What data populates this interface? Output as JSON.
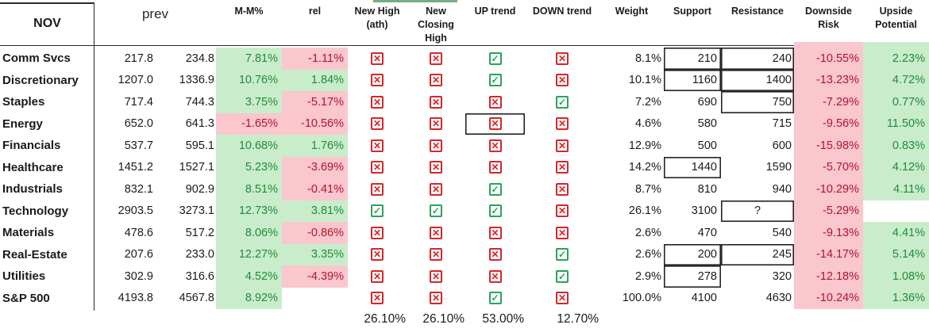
{
  "title": {
    "month": "NOV"
  },
  "columns": {
    "prev": "prev",
    "mm": "M-M%",
    "rel": "rel",
    "new_high": "New High\n(ath)",
    "new_closing_high": "New\nClosing\nHigh",
    "up_trend": "UP trend",
    "down_trend": "DOWN trend",
    "weight": "Weight",
    "support": "Support",
    "resistance": "Resistance",
    "downside": "Downside\nRisk",
    "upside": "Upside\nPotential"
  },
  "rows": [
    {
      "name": "Comm Svcs",
      "prev": "217.8",
      "close": "234.8",
      "mm": "7.81%",
      "rel": "-1.11%",
      "flags": {
        "new_high": false,
        "new_closing_high": false,
        "up_trend": true,
        "down_trend": false
      },
      "weight": "8.1%",
      "support": "210",
      "resistance": "240",
      "downside": "-10.55%",
      "upside": "2.23%",
      "boxed": [
        "support",
        "resistance"
      ]
    },
    {
      "name": "Discretionary",
      "prev": "1207.0",
      "close": "1336.9",
      "mm": "10.76%",
      "rel": "1.84%",
      "flags": {
        "new_high": false,
        "new_closing_high": false,
        "up_trend": true,
        "down_trend": false
      },
      "weight": "10.1%",
      "support": "1160",
      "resistance": "1400",
      "downside": "-13.23%",
      "upside": "4.72%",
      "boxed": [
        "support",
        "resistance"
      ]
    },
    {
      "name": "Staples",
      "prev": "717.4",
      "close": "744.3",
      "mm": "3.75%",
      "rel": "-5.17%",
      "flags": {
        "new_high": false,
        "new_closing_high": false,
        "up_trend": false,
        "down_trend": true
      },
      "weight": "7.2%",
      "support": "690",
      "resistance": "750",
      "downside": "-7.29%",
      "upside": "0.77%",
      "boxed": [
        "resistance"
      ]
    },
    {
      "name": "Energy",
      "prev": "652.0",
      "close": "641.3",
      "mm": "-1.65%",
      "rel": "-10.56%",
      "flags": {
        "new_high": false,
        "new_closing_high": false,
        "up_trend": false,
        "down_trend": false
      },
      "weight": "4.6%",
      "support": "580",
      "resistance": "715",
      "downside": "-9.56%",
      "upside": "11.50%",
      "boxed": [
        "up_trend"
      ]
    },
    {
      "name": "Financials",
      "prev": "537.7",
      "close": "595.1",
      "mm": "10.68%",
      "rel": "1.76%",
      "flags": {
        "new_high": false,
        "new_closing_high": false,
        "up_trend": false,
        "down_trend": false
      },
      "weight": "12.9%",
      "support": "500",
      "resistance": "600",
      "downside": "-15.98%",
      "upside": "0.83%",
      "boxed": []
    },
    {
      "name": "Healthcare",
      "prev": "1451.2",
      "close": "1527.1",
      "mm": "5.23%",
      "rel": "-3.69%",
      "flags": {
        "new_high": false,
        "new_closing_high": false,
        "up_trend": false,
        "down_trend": false
      },
      "weight": "14.2%",
      "support": "1440",
      "resistance": "1590",
      "downside": "-5.70%",
      "upside": "4.12%",
      "boxed": [
        "support"
      ]
    },
    {
      "name": "Industrials",
      "prev": "832.1",
      "close": "902.9",
      "mm": "8.51%",
      "rel": "-0.41%",
      "flags": {
        "new_high": false,
        "new_closing_high": false,
        "up_trend": true,
        "down_trend": false
      },
      "weight": "8.7%",
      "support": "810",
      "resistance": "940",
      "downside": "-10.29%",
      "upside": "4.11%",
      "boxed": []
    },
    {
      "name": "Technology",
      "prev": "2903.5",
      "close": "3273.1",
      "mm": "12.73%",
      "rel": "3.81%",
      "flags": {
        "new_high": true,
        "new_closing_high": true,
        "up_trend": true,
        "down_trend": false
      },
      "weight": "26.1%",
      "support": "3100",
      "resistance": "?",
      "downside": "-5.29%",
      "upside": "",
      "boxed": [
        "resistance"
      ]
    },
    {
      "name": "Materials",
      "prev": "478.6",
      "close": "517.2",
      "mm": "8.06%",
      "rel": "-0.86%",
      "flags": {
        "new_high": false,
        "new_closing_high": false,
        "up_trend": false,
        "down_trend": false
      },
      "weight": "2.6%",
      "support": "470",
      "resistance": "540",
      "downside": "-9.13%",
      "upside": "4.41%",
      "boxed": []
    },
    {
      "name": "Real-Estate",
      "prev": "207.6",
      "close": "233.0",
      "mm": "12.27%",
      "rel": "3.35%",
      "flags": {
        "new_high": false,
        "new_closing_high": false,
        "up_trend": false,
        "down_trend": true
      },
      "weight": "2.6%",
      "support": "200",
      "resistance": "245",
      "downside": "-14.17%",
      "upside": "5.14%",
      "boxed": [
        "support",
        "resistance"
      ]
    },
    {
      "name": "Utilities",
      "prev": "302.9",
      "close": "316.6",
      "mm": "4.52%",
      "rel": "-4.39%",
      "flags": {
        "new_high": false,
        "new_closing_high": false,
        "up_trend": false,
        "down_trend": true
      },
      "weight": "2.9%",
      "support": "278",
      "resistance": "320",
      "downside": "-12.18%",
      "upside": "1.08%",
      "boxed": [
        "support"
      ]
    },
    {
      "name": "S&P 500",
      "prev": "4193.8",
      "close": "4567.8",
      "mm": "8.92%",
      "rel": "",
      "flags": {
        "new_high": false,
        "new_closing_high": false,
        "up_trend": true,
        "down_trend": false
      },
      "weight": "100.0%",
      "support": "4100",
      "resistance": "4630",
      "downside": "-10.24%",
      "upside": "1.36%",
      "boxed": []
    }
  ],
  "summary": {
    "new_high": "26.10%",
    "new_closing_high": "26.10%",
    "up_trend": "53.00%",
    "down_trend": "12.70%"
  },
  "icons": {
    "x_glyph": "✕",
    "check_glyph": "✓"
  },
  "colors": {
    "good_bg": "#c9edcb",
    "good_text": "#1f8b3d",
    "bad_bg": "#f9c7cd",
    "bad_text": "#b5122e",
    "flag_red": "#d7262a",
    "flag_green": "#28a35c",
    "border": "#262626"
  }
}
